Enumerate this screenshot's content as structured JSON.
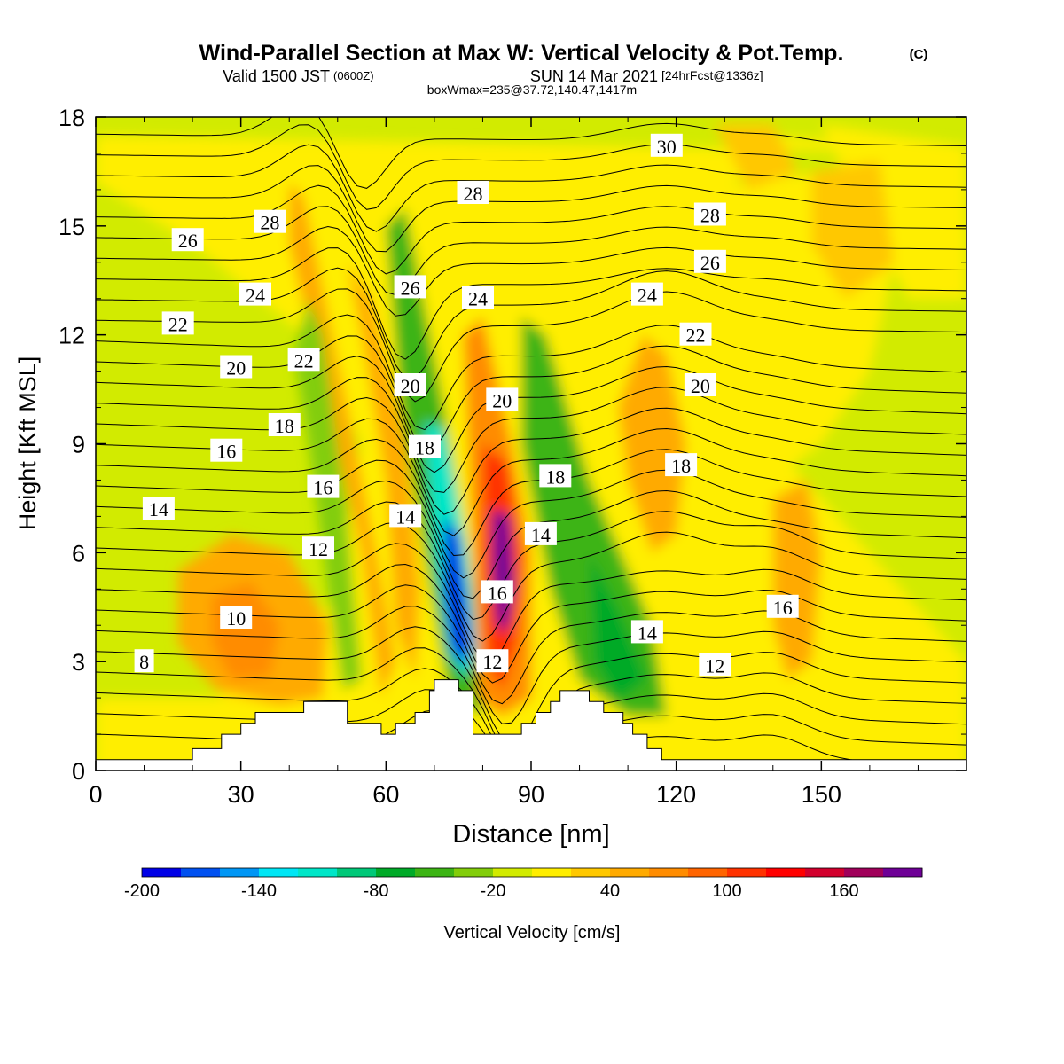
{
  "header": {
    "title": "Wind-Parallel Section at Max W: Vertical Velocity & Pot.Temp.",
    "copyright": "(C)",
    "valid_prefix": "Valid 1500 JST",
    "valid_zulu": "(0600Z)",
    "valid_date": "SUN 14 Mar 2021",
    "forecast": "[24hrFcst@1336z]",
    "boxwmax": "boxWmax=235@37.72,140.47,1417m"
  },
  "chart_data": {
    "type": "heatmap",
    "xlabel": "Distance [nm]",
    "ylabel": "Height [Kft MSL]",
    "xlim": [
      0,
      180
    ],
    "ylim": [
      0,
      18
    ],
    "x_ticks": [
      0,
      30,
      60,
      90,
      120,
      150
    ],
    "y_ticks": [
      0,
      3,
      6,
      9,
      12,
      15,
      18
    ],
    "colorbar": {
      "label": "Vertical Velocity [cm/s]",
      "range": [
        -200,
        200
      ],
      "tick_values": [
        -200,
        -140,
        -80,
        -20,
        40,
        100,
        160
      ],
      "colors": [
        "#0000e6",
        "#0050f0",
        "#0096f5",
        "#00e6f5",
        "#00e6c8",
        "#00c878",
        "#00aa28",
        "#3cb414",
        "#82cd0a",
        "#d2eb00",
        "#ffee00",
        "#ffc800",
        "#ffaa00",
        "#ff8c00",
        "#ff6400",
        "#ff3200",
        "#ff0000",
        "#d2002d",
        "#a0005a",
        "#6e0096"
      ]
    },
    "velocity_features": [
      {
        "name": "downdraft",
        "x": 74,
        "y": 4.5,
        "value": -200
      },
      {
        "name": "updraft",
        "x": 84,
        "y": 4.5,
        "value": 190
      },
      {
        "name": "downdraft",
        "x": 110,
        "y": 3.0,
        "value": -70
      },
      {
        "name": "updraft",
        "x": 32,
        "y": 4.0,
        "value": 45
      },
      {
        "name": "updraft",
        "x": 145,
        "y": 5.0,
        "value": 40
      },
      {
        "name": "updraft",
        "x": 115,
        "y": 10.0,
        "value": 40
      }
    ],
    "terrain": [
      [
        0,
        0.3
      ],
      [
        20,
        0.3
      ],
      [
        20,
        0.6
      ],
      [
        26,
        0.6
      ],
      [
        26,
        1.0
      ],
      [
        30,
        1.0
      ],
      [
        30,
        1.3
      ],
      [
        33,
        1.3
      ],
      [
        33,
        1.6
      ],
      [
        43,
        1.6
      ],
      [
        43,
        1.9
      ],
      [
        52,
        1.9
      ],
      [
        52,
        1.3
      ],
      [
        59,
        1.3
      ],
      [
        59,
        1.0
      ],
      [
        62,
        1.0
      ],
      [
        62,
        1.3
      ],
      [
        66,
        1.3
      ],
      [
        66,
        1.6
      ],
      [
        69,
        1.6
      ],
      [
        69,
        2.2
      ],
      [
        70,
        2.2
      ],
      [
        70,
        2.5
      ],
      [
        75,
        2.5
      ],
      [
        75,
        2.2
      ],
      [
        78,
        2.2
      ],
      [
        78,
        1.0
      ],
      [
        88,
        1.0
      ],
      [
        88,
        1.3
      ],
      [
        91,
        1.3
      ],
      [
        91,
        1.6
      ],
      [
        94,
        1.6
      ],
      [
        94,
        1.9
      ],
      [
        96,
        1.9
      ],
      [
        96,
        2.2
      ],
      [
        102,
        2.2
      ],
      [
        102,
        1.9
      ],
      [
        105,
        1.9
      ],
      [
        105,
        1.6
      ],
      [
        109,
        1.6
      ],
      [
        109,
        1.3
      ],
      [
        111,
        1.3
      ],
      [
        111,
        1.0
      ],
      [
        114,
        1.0
      ],
      [
        114,
        0.6
      ],
      [
        117,
        0.6
      ],
      [
        117,
        0.3
      ],
      [
        180,
        0.3
      ]
    ],
    "isentrope_labels": [
      {
        "text": "8",
        "x": 10,
        "y": 3.0
      },
      {
        "text": "10",
        "x": 29,
        "y": 4.2
      },
      {
        "text": "12",
        "x": 46,
        "y": 6.1
      },
      {
        "text": "14",
        "x": 13,
        "y": 7.2
      },
      {
        "text": "16",
        "x": 27,
        "y": 8.8
      },
      {
        "text": "18",
        "x": 39,
        "y": 9.5
      },
      {
        "text": "20",
        "x": 29,
        "y": 11.1
      },
      {
        "text": "22",
        "x": 17,
        "y": 12.3
      },
      {
        "text": "24",
        "x": 33,
        "y": 13.1
      },
      {
        "text": "26",
        "x": 19,
        "y": 14.6
      },
      {
        "text": "28",
        "x": 36,
        "y": 15.1
      },
      {
        "text": "16",
        "x": 47,
        "y": 7.8
      },
      {
        "text": "22",
        "x": 43,
        "y": 11.3
      },
      {
        "text": "14",
        "x": 64,
        "y": 7.0
      },
      {
        "text": "20",
        "x": 65,
        "y": 10.6
      },
      {
        "text": "18",
        "x": 68,
        "y": 8.9
      },
      {
        "text": "26",
        "x": 65,
        "y": 13.3
      },
      {
        "text": "24",
        "x": 79,
        "y": 13.0
      },
      {
        "text": "28",
        "x": 78,
        "y": 15.9
      },
      {
        "text": "20",
        "x": 84,
        "y": 10.2
      },
      {
        "text": "16",
        "x": 83,
        "y": 4.9
      },
      {
        "text": "12",
        "x": 82,
        "y": 3.0
      },
      {
        "text": "14",
        "x": 92,
        "y": 6.5
      },
      {
        "text": "18",
        "x": 95,
        "y": 8.1
      },
      {
        "text": "30",
        "x": 118,
        "y": 17.2
      },
      {
        "text": "28",
        "x": 127,
        "y": 15.3
      },
      {
        "text": "26",
        "x": 127,
        "y": 14.0
      },
      {
        "text": "24",
        "x": 114,
        "y": 13.1
      },
      {
        "text": "22",
        "x": 124,
        "y": 12.0
      },
      {
        "text": "20",
        "x": 125,
        "y": 10.6
      },
      {
        "text": "18",
        "x": 121,
        "y": 8.4
      },
      {
        "text": "14",
        "x": 114,
        "y": 3.8
      },
      {
        "text": "12",
        "x": 128,
        "y": 2.9
      },
      {
        "text": "16",
        "x": 142,
        "y": 4.5
      }
    ],
    "grid": false,
    "legend": "bottom"
  }
}
